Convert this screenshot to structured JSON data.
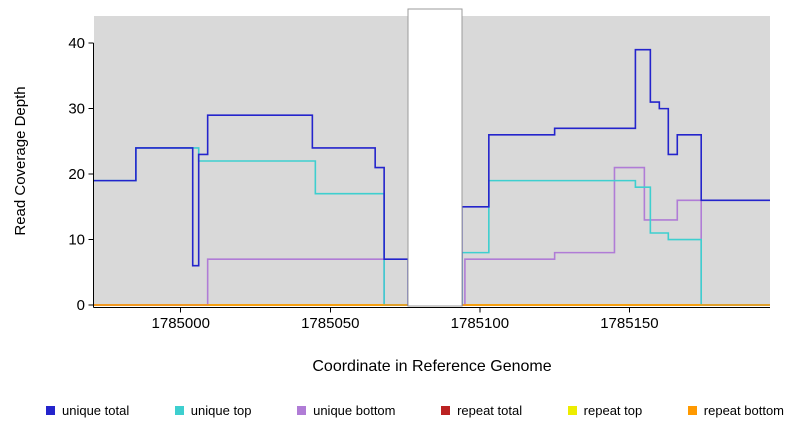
{
  "figure": {
    "xlabel": "Coordinate in Reference Genome",
    "ylabel": "Read Coverage Depth"
  },
  "chart_data": {
    "type": "line",
    "line_style": "step-after",
    "title": "",
    "xlabel": "Coordinate in Reference Genome",
    "ylabel": "Read Coverage Depth",
    "xlim": [
      1784971,
      1785197
    ],
    "ylim": [
      0,
      44
    ],
    "x_ticks": [
      "1785000",
      "1785050",
      "1785100",
      "1785150"
    ],
    "x_tick_values": [
      1785000,
      1785050,
      1785100,
      1785150
    ],
    "y_ticks": [
      "0",
      "10",
      "20",
      "30",
      "40"
    ],
    "y_tick_values": [
      0,
      10,
      20,
      30,
      40
    ],
    "panel_bg": "#d9d9d9",
    "axis_color": "#000000",
    "grid": false,
    "legend_position": "bottom",
    "gap_region": {
      "x_start": 1785076,
      "x_end": 1785094,
      "color": "#ffffff",
      "border": "#9b9b9b"
    },
    "series": [
      {
        "name": "unique total",
        "color": "#2424cc",
        "points": [
          [
            1784971,
            19
          ],
          [
            1784985,
            24
          ],
          [
            1785004,
            6
          ],
          [
            1785006,
            23
          ],
          [
            1785009,
            29
          ],
          [
            1785044,
            24
          ],
          [
            1785065,
            21
          ],
          [
            1785068,
            7
          ],
          [
            1785076,
            0
          ],
          [
            1785094,
            15
          ],
          [
            1785103,
            26
          ],
          [
            1785125,
            27
          ],
          [
            1785152,
            39
          ],
          [
            1785157,
            31
          ],
          [
            1785160,
            30
          ],
          [
            1785163,
            23
          ],
          [
            1785166,
            26
          ],
          [
            1785174,
            16
          ]
        ]
      },
      {
        "name": "unique top",
        "color": "#3ecfcf",
        "points": [
          [
            1784971,
            19
          ],
          [
            1784985,
            24
          ],
          [
            1785006,
            22
          ],
          [
            1785045,
            17
          ],
          [
            1785068,
            0
          ],
          [
            1785094,
            8
          ],
          [
            1785103,
            19
          ],
          [
            1785152,
            18
          ],
          [
            1785157,
            11
          ],
          [
            1785163,
            10
          ],
          [
            1785174,
            0
          ]
        ]
      },
      {
        "name": "unique bottom",
        "color": "#b07cd6",
        "points": [
          [
            1784971,
            0
          ],
          [
            1785009,
            7
          ],
          [
            1785068,
            0
          ],
          [
            1785095,
            7
          ],
          [
            1785125,
            8
          ],
          [
            1785145,
            21
          ],
          [
            1785155,
            13
          ],
          [
            1785166,
            16
          ],
          [
            1785174,
            0
          ]
        ]
      },
      {
        "name": "repeat total",
        "color": "#bb2222",
        "points": [
          [
            1784971,
            0
          ]
        ]
      },
      {
        "name": "repeat top",
        "color": "#eded00",
        "points": [
          [
            1784971,
            0
          ]
        ]
      },
      {
        "name": "repeat bottom",
        "color": "#ff9900",
        "points": [
          [
            1784971,
            0
          ]
        ]
      }
    ],
    "draw_order": [
      "repeat total",
      "repeat top",
      "unique bottom",
      "unique top",
      "repeat bottom",
      "unique total"
    ]
  }
}
